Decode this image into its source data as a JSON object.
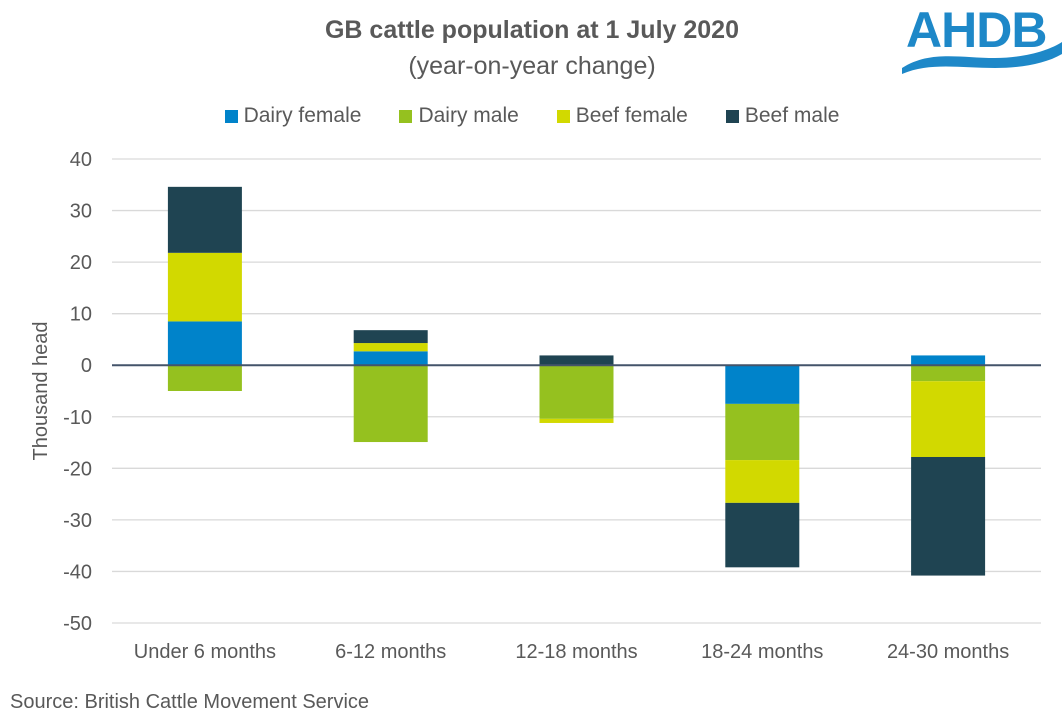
{
  "chart_data": {
    "type": "bar",
    "stacked": true,
    "title": "GB cattle population at 1 July 2020",
    "subtitle": "(year-on-year change)",
    "xlabel": "",
    "ylabel": "Thousand head",
    "ylim": [
      -50,
      40
    ],
    "yticks": [
      40,
      30,
      20,
      10,
      0,
      -10,
      -20,
      -30,
      -40,
      -50
    ],
    "grid": true,
    "legend_position": "top",
    "categories": [
      "Under 6 months",
      "6-12 months",
      "12-18 months",
      "18-24 months",
      "24-30 months"
    ],
    "series": [
      {
        "name": "Dairy female",
        "color": "#0083CA",
        "values": [
          8.5,
          2.7,
          0.0,
          -7.5,
          1.9
        ]
      },
      {
        "name": "Dairy male",
        "color": "#95C11F",
        "values": [
          -5.0,
          -14.9,
          -10.4,
          -10.9,
          -3.1
        ]
      },
      {
        "name": "Beef female",
        "color": "#D2D900",
        "values": [
          13.3,
          1.6,
          -0.8,
          -8.3,
          -14.7
        ]
      },
      {
        "name": "Beef male",
        "color": "#1F4452",
        "values": [
          12.8,
          2.5,
          1.9,
          -12.5,
          -23.0
        ]
      }
    ],
    "source": "Source: British Cattle Movement Service"
  },
  "logo": {
    "text": "AHDB",
    "color": "#1E88C8"
  }
}
